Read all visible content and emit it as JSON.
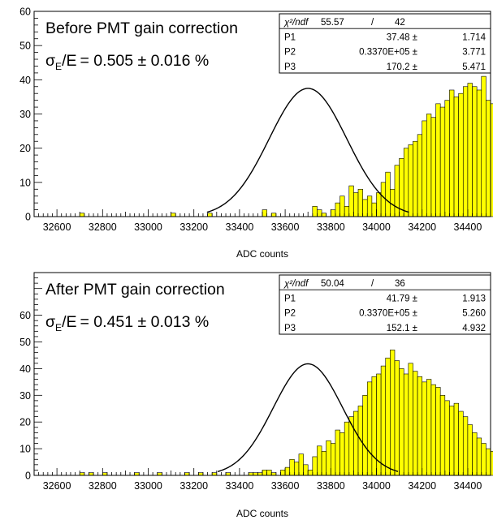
{
  "chart_data": [
    {
      "type": "bar",
      "title": "Before PMT gain correction",
      "resolution_label": "= 0.505 ± 0.016 %",
      "sigma_symbol": "σ",
      "sigma_sub": "E",
      "sigma_over": "/E",
      "xlabel": "ADC counts",
      "ylabel": "",
      "xlim": [
        32500,
        34500
      ],
      "ylim": [
        0,
        60
      ],
      "bin_width": 20,
      "x_ticks": [
        32600,
        32800,
        33000,
        33200,
        33400,
        33600,
        33800,
        34000,
        34200,
        34400
      ],
      "y_ticks": [
        0,
        10,
        20,
        30,
        40,
        50,
        60
      ],
      "fill_color": "#ffff00",
      "bins_start": 32500,
      "values": [
        0,
        0,
        0,
        0,
        0,
        0,
        0,
        0,
        0,
        0,
        1,
        0,
        0,
        0,
        0,
        0,
        0,
        0,
        0,
        0,
        0,
        0,
        0,
        0,
        0,
        0,
        0,
        0,
        0,
        0,
        1,
        0,
        0,
        0,
        0,
        0,
        0,
        0,
        1,
        0,
        0,
        0,
        0,
        0,
        0,
        0,
        0,
        0,
        0,
        0,
        2,
        0,
        1,
        0,
        0,
        0,
        0,
        0,
        0,
        0,
        0,
        3,
        2,
        1,
        0,
        2,
        4,
        6,
        3,
        9,
        7,
        8,
        5,
        6,
        4,
        7,
        10,
        13,
        8,
        15,
        17,
        20,
        21,
        22,
        24,
        28,
        30,
        29,
        33,
        32,
        34,
        37,
        35,
        36,
        38,
        39,
        38,
        37,
        41,
        34,
        33,
        31,
        30,
        28,
        27,
        26,
        24,
        23,
        25,
        19,
        18,
        15,
        14,
        12,
        10,
        9,
        8,
        6,
        5,
        4,
        3,
        4,
        2,
        1,
        0,
        1,
        0,
        0,
        2,
        1,
        1,
        0,
        0,
        0,
        0,
        0,
        0,
        0,
        1,
        0,
        0,
        0,
        0,
        0,
        0,
        0,
        0,
        0,
        0,
        0
      ],
      "fit": {
        "amplitude": 37.48,
        "mean": 33700,
        "sigma": 170.2
      },
      "stats": {
        "chi_label": "χ²/ndf",
        "chi_value": "55.57",
        "sep": "/",
        "ndf": "42",
        "rows": [
          {
            "name": "P1",
            "value": "37.48 ±",
            "error": "1.714"
          },
          {
            "name": "P2",
            "value": "0.3370E+05 ±",
            "error": "3.771"
          },
          {
            "name": "P3",
            "value": "170.2 ±",
            "error": "5.471"
          }
        ]
      }
    },
    {
      "type": "bar",
      "title": "After PMT gain correction",
      "resolution_label": "= 0.451 ± 0.013 %",
      "sigma_symbol": "σ",
      "sigma_sub": "E",
      "sigma_over": "/E",
      "xlabel": "ADC counts",
      "ylabel": "",
      "xlim": [
        32500,
        34500
      ],
      "ylim": [
        0,
        67
      ],
      "bin_width": 20,
      "x_ticks": [
        32600,
        32800,
        33000,
        33200,
        33400,
        33600,
        33800,
        34000,
        34200,
        34400
      ],
      "y_ticks": [
        0,
        10,
        20,
        30,
        40,
        50,
        60
      ],
      "fill_color": "#ffff00",
      "bins_start": 32500,
      "values": [
        0,
        0,
        0,
        0,
        0,
        0,
        0,
        0,
        0,
        0,
        1,
        0,
        1,
        0,
        0,
        1,
        0,
        0,
        0,
        0,
        0,
        0,
        1,
        0,
        0,
        0,
        0,
        1,
        0,
        0,
        0,
        0,
        0,
        1,
        0,
        0,
        1,
        0,
        0,
        1,
        0,
        0,
        1,
        0,
        0,
        0,
        0,
        1,
        1,
        1,
        2,
        2,
        1,
        0,
        2,
        3,
        6,
        5,
        8,
        4,
        2,
        7,
        11,
        9,
        13,
        12,
        17,
        16,
        20,
        22,
        24,
        26,
        30,
        35,
        37,
        38,
        41,
        44,
        47,
        43,
        40,
        38,
        42,
        39,
        37,
        35,
        36,
        34,
        33,
        30,
        28,
        26,
        27,
        24,
        22,
        19,
        16,
        14,
        12,
        10,
        9,
        6,
        5,
        4,
        3,
        2,
        3,
        1,
        0,
        1,
        0,
        0,
        0,
        0,
        0,
        0,
        0,
        0,
        0,
        0,
        0,
        0,
        0,
        0,
        0,
        0,
        0,
        0,
        0,
        0,
        0,
        0,
        0,
        0,
        0,
        0,
        0,
        0,
        0,
        0,
        0,
        0,
        0,
        0,
        0,
        0,
        0,
        0,
        0,
        0
      ],
      "fit": {
        "amplitude": 41.79,
        "mean": 33700,
        "sigma": 152.1
      },
      "stats": {
        "chi_label": "χ²/ndf",
        "chi_value": "50.04",
        "sep": "/",
        "ndf": "36",
        "rows": [
          {
            "name": "P1",
            "value": "41.79 ±",
            "error": "1.913"
          },
          {
            "name": "P2",
            "value": "0.3370E+05 ±",
            "error": "5.260"
          },
          {
            "name": "P3",
            "value": "152.1 ±",
            "error": "4.932"
          }
        ]
      }
    }
  ]
}
